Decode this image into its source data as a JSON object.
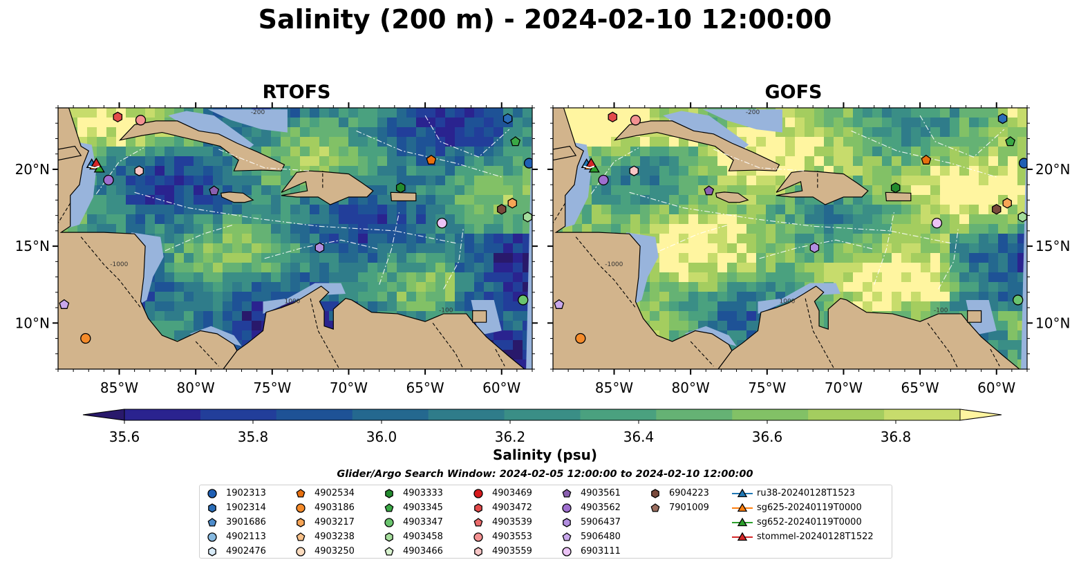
{
  "title": "Salinity (200 m) - 2024-02-10 12:00:00",
  "chart_data": {
    "type": "heatmap",
    "title": "Salinity (200 m) - 2024-02-10 12:00:00",
    "panels": [
      {
        "name": "RTOFS"
      },
      {
        "name": "GOFS"
      }
    ],
    "x_ticks": [
      "85°W",
      "80°W",
      "75°W",
      "70°W",
      "65°W",
      "60°W"
    ],
    "x_tick_values": [
      -85,
      -80,
      -75,
      -70,
      -65,
      -60
    ],
    "y_ticks": [
      "20°N",
      "15°N",
      "10°N"
    ],
    "y_tick_values": [
      20,
      15,
      10
    ],
    "lon_range": [
      -89,
      -58
    ],
    "lat_range": [
      7,
      24
    ],
    "colorbar": {
      "label": "Salinity (psu)",
      "ticks": [
        "35.6",
        "35.8",
        "36.0",
        "36.2",
        "36.4",
        "36.6",
        "36.8"
      ],
      "tick_values": [
        35.6,
        35.8,
        36.0,
        36.2,
        36.4,
        36.6,
        36.8
      ],
      "range": [
        35.6,
        36.9
      ],
      "extend": "both",
      "colors": [
        "#29196b",
        "#2a238f",
        "#223e9a",
        "#1e5296",
        "#24688f",
        "#2f7c8a",
        "#3a8e86",
        "#4aa17f",
        "#65b274",
        "#82c166",
        "#a4cd5f",
        "#c7dc6c",
        "#fff5a0"
      ]
    },
    "legend_title": "Glider/Argo Search Window: 2024-02-05 12:00:00 to 2024-02-10 12:00:00",
    "legend_placement": "bottom-center",
    "platforms": [
      {
        "label": "1902313",
        "marker": "circle",
        "color": "#1f5fb4",
        "lon": -58.2,
        "lat": 20.4
      },
      {
        "label": "1902314",
        "marker": "hexagon",
        "color": "#2a6db8",
        "lon": -59.6,
        "lat": 23.3
      },
      {
        "label": "3901686",
        "marker": "pentagon",
        "color": "#4d8ccb",
        "lon": null,
        "lat": null
      },
      {
        "label": "4902113",
        "marker": "circle",
        "color": "#86b9e0",
        "lon": null,
        "lat": null
      },
      {
        "label": "4902476",
        "marker": "hexagon",
        "color": "#d8ebf8",
        "lon": null,
        "lat": null
      },
      {
        "label": "4902534",
        "marker": "pentagon",
        "color": "#e8700f",
        "lon": -64.6,
        "lat": 20.6
      },
      {
        "label": "4903186",
        "marker": "circle",
        "color": "#f58b2a",
        "lon": -87.2,
        "lat": 9.0
      },
      {
        "label": "4903217",
        "marker": "hexagon",
        "color": "#f7a556",
        "lon": -59.3,
        "lat": 17.8
      },
      {
        "label": "4903238",
        "marker": "pentagon",
        "color": "#f9c189",
        "lon": null,
        "lat": null
      },
      {
        "label": "4903250",
        "marker": "circle",
        "color": "#fbdcbf",
        "lon": null,
        "lat": null
      },
      {
        "label": "4903333",
        "marker": "hexagon",
        "color": "#238b2e",
        "lon": -66.6,
        "lat": 18.8
      },
      {
        "label": "4903345",
        "marker": "pentagon",
        "color": "#3aa845",
        "lon": -59.1,
        "lat": 21.8
      },
      {
        "label": "4903347",
        "marker": "circle",
        "color": "#6ac46e",
        "lon": -58.6,
        "lat": 11.5
      },
      {
        "label": "4903458",
        "marker": "hexagon",
        "color": "#a4dd9b",
        "lon": -58.3,
        "lat": 16.9
      },
      {
        "label": "4903466",
        "marker": "pentagon",
        "color": "#d8f3cf",
        "lon": null,
        "lat": null
      },
      {
        "label": "4903469",
        "marker": "circle",
        "color": "#d7191c",
        "lon": null,
        "lat": null
      },
      {
        "label": "4903472",
        "marker": "hexagon",
        "color": "#e34a4a",
        "lon": -85.1,
        "lat": 23.4
      },
      {
        "label": "4903539",
        "marker": "pentagon",
        "color": "#ea6a6a",
        "lon": null,
        "lat": null
      },
      {
        "label": "4903553",
        "marker": "circle",
        "color": "#f39191",
        "lon": -83.6,
        "lat": 23.2
      },
      {
        "label": "4903559",
        "marker": "hexagon",
        "color": "#f8c6c6",
        "lon": -83.7,
        "lat": 19.9
      },
      {
        "label": "4903561",
        "marker": "pentagon",
        "color": "#8a5fb0",
        "lon": -78.8,
        "lat": 18.6
      },
      {
        "label": "4903562",
        "marker": "circle",
        "color": "#9f6fcf",
        "lon": -85.7,
        "lat": 19.3
      },
      {
        "label": "5906437",
        "marker": "hexagon",
        "color": "#b28ee0",
        "lon": -71.9,
        "lat": 14.9
      },
      {
        "label": "5906480",
        "marker": "pentagon",
        "color": "#c9a8ec",
        "lon": -88.6,
        "lat": 11.2
      },
      {
        "label": "6903111",
        "marker": "circle",
        "color": "#ebc3f5",
        "lon": -63.9,
        "lat": 16.5
      },
      {
        "label": "6904223",
        "marker": "hexagon",
        "color": "#7a4a3c",
        "lon": -60.0,
        "lat": 17.4
      },
      {
        "label": "7901009",
        "marker": "pentagon",
        "color": "#9b6e60",
        "lon": null,
        "lat": null
      }
    ],
    "gliders": [
      {
        "label": "ru38-20240128T1523",
        "marker": "triangle",
        "color": "#1f77b4"
      },
      {
        "label": "sg625-20240119T0000",
        "marker": "triangle",
        "color": "#ff7f0e"
      },
      {
        "label": "sg652-20240119T0000",
        "marker": "triangle",
        "color": "#2ca02c"
      },
      {
        "label": "stommel-20240128T1522",
        "marker": "triangle",
        "color": "#d62728"
      }
    ],
    "contour_labels": [
      "-200",
      "-1000",
      "1000",
      "-100"
    ]
  },
  "colors": {
    "land": "#d2b48c",
    "shelf": "#98b4dc",
    "border_line": "#000000"
  }
}
